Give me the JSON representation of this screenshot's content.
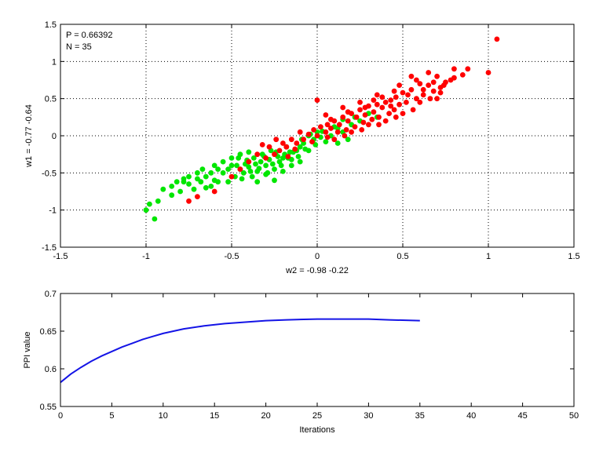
{
  "chart_data": [
    {
      "type": "scatter",
      "xlabel": "w2 = -0.98  -0.22",
      "ylabel": "w1 = -0.77  -0.64",
      "xlim": [
        -1.5,
        1.5
      ],
      "ylim": [
        -1.5,
        1.5
      ],
      "xticks": [
        "-1.5",
        "-1",
        "-0.5",
        "0",
        "0.5",
        "1",
        "1.5"
      ],
      "yticks": [
        "-1.5",
        "-1",
        "-0.5",
        "0",
        "0.5",
        "1",
        "1.5"
      ],
      "grid": true,
      "annotations": [
        "P = 0.66392",
        "N = 35"
      ],
      "series": [
        {
          "color": "#00e600",
          "points": [
            [
              -1.0,
              -1.0
            ],
            [
              -0.95,
              -1.12
            ],
            [
              -0.93,
              -0.88
            ],
            [
              -0.98,
              -0.92
            ],
            [
              -0.9,
              -0.72
            ],
            [
              -0.85,
              -0.68
            ],
            [
              -0.8,
              -0.75
            ],
            [
              -0.78,
              -0.62
            ],
            [
              -0.75,
              -0.65
            ],
            [
              -0.72,
              -0.72
            ],
            [
              -0.7,
              -0.58
            ],
            [
              -0.68,
              -0.62
            ],
            [
              -0.65,
              -0.55
            ],
            [
              -0.62,
              -0.5
            ],
            [
              -0.6,
              -0.6
            ],
            [
              -0.58,
              -0.45
            ],
            [
              -0.55,
              -0.5
            ],
            [
              -0.52,
              -0.62
            ],
            [
              -0.5,
              -0.4
            ],
            [
              -0.48,
              -0.55
            ],
            [
              -0.46,
              -0.3
            ],
            [
              -0.45,
              -0.45
            ],
            [
              -0.43,
              -0.5
            ],
            [
              -0.42,
              -0.38
            ],
            [
              -0.4,
              -0.42
            ],
            [
              -0.38,
              -0.55
            ],
            [
              -0.37,
              -0.3
            ],
            [
              -0.35,
              -0.48
            ],
            [
              -0.33,
              -0.35
            ],
            [
              -0.32,
              -0.25
            ],
            [
              -0.3,
              -0.4
            ],
            [
              -0.28,
              -0.32
            ],
            [
              -0.27,
              -0.2
            ],
            [
              -0.25,
              -0.45
            ],
            [
              -0.23,
              -0.28
            ],
            [
              -0.22,
              -0.35
            ],
            [
              -0.2,
              -0.3
            ],
            [
              -0.18,
              -0.15
            ],
            [
              -0.16,
              -0.22
            ],
            [
              -0.15,
              -0.32
            ],
            [
              -0.12,
              -0.2
            ],
            [
              -0.1,
              -0.35
            ],
            [
              -0.08,
              -0.1
            ],
            [
              -0.05,
              0.0
            ],
            [
              -0.02,
              -0.05
            ],
            [
              0.0,
              0.05
            ],
            [
              0.05,
              -0.08
            ],
            [
              0.08,
              0.0
            ],
            [
              0.12,
              0.1
            ],
            [
              0.15,
              0.05
            ],
            [
              0.2,
              0.15
            ],
            [
              0.22,
              0.25
            ],
            [
              0.25,
              0.2
            ],
            [
              0.18,
              -0.05
            ],
            [
              -0.55,
              -0.35
            ],
            [
              -0.6,
              -0.4
            ],
            [
              -0.65,
              -0.7
            ],
            [
              -0.7,
              -0.5
            ],
            [
              -0.75,
              -0.55
            ],
            [
              -0.45,
              -0.25
            ],
            [
              -0.5,
              -0.3
            ],
            [
              -0.4,
              -0.22
            ],
            [
              -0.35,
              -0.62
            ],
            [
              -0.3,
              -0.52
            ],
            [
              -0.25,
              -0.6
            ],
            [
              -0.2,
              -0.48
            ],
            [
              -0.15,
              -0.4
            ],
            [
              -0.1,
              -0.15
            ],
            [
              -0.05,
              -0.2
            ],
            [
              0.02,
              -0.02
            ],
            [
              0.1,
              0.12
            ],
            [
              0.15,
              0.22
            ],
            [
              0.3,
              0.3
            ],
            [
              0.35,
              0.25
            ],
            [
              0.12,
              -0.1
            ],
            [
              -0.85,
              -0.8
            ],
            [
              -0.82,
              -0.62
            ],
            [
              -0.78,
              -0.58
            ],
            [
              -0.67,
              -0.45
            ],
            [
              -0.62,
              -0.68
            ],
            [
              -0.58,
              -0.62
            ],
            [
              -0.52,
              -0.45
            ],
            [
              -0.47,
              -0.4
            ],
            [
              -0.44,
              -0.58
            ],
            [
              -0.41,
              -0.33
            ],
            [
              -0.39,
              -0.48
            ],
            [
              -0.36,
              -0.38
            ],
            [
              -0.34,
              -0.44
            ],
            [
              -0.31,
              -0.28
            ],
            [
              -0.29,
              -0.5
            ],
            [
              -0.26,
              -0.38
            ],
            [
              -0.24,
              -0.22
            ],
            [
              -0.21,
              -0.4
            ],
            [
              -0.19,
              -0.25
            ],
            [
              -0.17,
              -0.3
            ],
            [
              -0.14,
              -0.22
            ],
            [
              -0.11,
              -0.28
            ],
            [
              -0.09,
              -0.05
            ],
            [
              -0.07,
              -0.18
            ],
            [
              -0.04,
              0.02
            ],
            [
              -0.01,
              -0.12
            ],
            [
              0.03,
              0.06
            ]
          ]
        },
        {
          "color": "#ff0000",
          "points": [
            [
              1.05,
              1.3
            ],
            [
              1.0,
              0.85
            ],
            [
              0.85,
              0.82
            ],
            [
              0.8,
              0.9
            ],
            [
              0.78,
              0.75
            ],
            [
              0.75,
              0.72
            ],
            [
              0.72,
              0.65
            ],
            [
              0.7,
              0.8
            ],
            [
              0.68,
              0.6
            ],
            [
              0.65,
              0.68
            ],
            [
              0.62,
              0.55
            ],
            [
              0.6,
              0.7
            ],
            [
              0.58,
              0.5
            ],
            [
              0.55,
              0.62
            ],
            [
              0.52,
              0.45
            ],
            [
              0.5,
              0.58
            ],
            [
              0.48,
              0.42
            ],
            [
              0.46,
              0.52
            ],
            [
              0.45,
              0.35
            ],
            [
              0.43,
              0.48
            ],
            [
              0.42,
              0.3
            ],
            [
              0.4,
              0.45
            ],
            [
              0.38,
              0.38
            ],
            [
              0.36,
              0.25
            ],
            [
              0.35,
              0.42
            ],
            [
              0.33,
              0.32
            ],
            [
              0.32,
              0.22
            ],
            [
              0.3,
              0.4
            ],
            [
              0.28,
              0.28
            ],
            [
              0.27,
              0.18
            ],
            [
              0.25,
              0.35
            ],
            [
              0.23,
              0.25
            ],
            [
              0.22,
              0.12
            ],
            [
              0.2,
              0.3
            ],
            [
              0.18,
              0.2
            ],
            [
              0.17,
              0.08
            ],
            [
              0.15,
              0.25
            ],
            [
              0.13,
              0.15
            ],
            [
              0.12,
              0.05
            ],
            [
              0.1,
              0.2
            ],
            [
              0.08,
              0.1
            ],
            [
              0.06,
              0.15
            ],
            [
              0.05,
              0.05
            ],
            [
              0.02,
              0.12
            ],
            [
              0.0,
              0.0
            ],
            [
              -0.02,
              0.08
            ],
            [
              -0.05,
              0.02
            ],
            [
              -0.08,
              -0.05
            ],
            [
              -0.1,
              0.05
            ],
            [
              -0.12,
              -0.1
            ],
            [
              -0.15,
              -0.05
            ],
            [
              -0.18,
              -0.15
            ],
            [
              -0.2,
              -0.1
            ],
            [
              -0.22,
              -0.2
            ],
            [
              -0.25,
              -0.25
            ],
            [
              -0.28,
              -0.15
            ],
            [
              -0.3,
              -0.3
            ],
            [
              -0.35,
              -0.25
            ],
            [
              -0.4,
              -0.35
            ],
            [
              -0.45,
              -0.45
            ],
            [
              -0.5,
              -0.55
            ],
            [
              -0.6,
              -0.75
            ],
            [
              -0.7,
              -0.82
            ],
            [
              -0.75,
              -0.88
            ],
            [
              0.35,
              0.55
            ],
            [
              0.45,
              0.6
            ],
            [
              0.55,
              0.8
            ],
            [
              0.65,
              0.85
            ],
            [
              0.7,
              0.5
            ],
            [
              0.6,
              0.45
            ],
            [
              0.5,
              0.3
            ],
            [
              0.4,
              0.2
            ],
            [
              0.3,
              0.15
            ],
            [
              0.2,
              0.05
            ],
            [
              0.1,
              -0.05
            ],
            [
              0.25,
              0.45
            ],
            [
              0.15,
              0.38
            ],
            [
              0.05,
              0.28
            ],
            [
              0.0,
              0.48
            ],
            [
              0.38,
              0.52
            ],
            [
              0.48,
              0.68
            ],
            [
              0.58,
              0.75
            ],
            [
              0.68,
              0.72
            ],
            [
              0.53,
              0.55
            ],
            [
              0.43,
              0.4
            ],
            [
              0.33,
              0.48
            ],
            [
              0.28,
              0.38
            ],
            [
              0.18,
              0.32
            ],
            [
              0.08,
              0.22
            ],
            [
              0.62,
              0.62
            ],
            [
              0.72,
              0.58
            ],
            [
              0.8,
              0.78
            ],
            [
              0.88,
              0.9
            ],
            [
              0.56,
              0.35
            ],
            [
              0.46,
              0.25
            ],
            [
              0.36,
              0.15
            ],
            [
              0.26,
              0.08
            ],
            [
              0.16,
              0.0
            ],
            [
              0.06,
              -0.02
            ],
            [
              -0.03,
              -0.08
            ],
            [
              -0.13,
              -0.18
            ],
            [
              -0.17,
              -0.28
            ],
            [
              -0.24,
              -0.05
            ],
            [
              -0.32,
              -0.12
            ],
            [
              0.74,
              0.68
            ],
            [
              0.66,
              0.5
            ]
          ]
        }
      ]
    },
    {
      "type": "line",
      "xlabel": "Iterations",
      "ylabel": "PPI value",
      "xlim": [
        0,
        50
      ],
      "ylim": [
        0.55,
        0.7
      ],
      "xticks": [
        "0",
        "5",
        "10",
        "15",
        "20",
        "25",
        "30",
        "35",
        "40",
        "45",
        "50"
      ],
      "yticks": [
        "0.55",
        "0.6",
        "0.65",
        "0.7"
      ],
      "grid": false,
      "series": [
        {
          "color": "#1414e6",
          "x": [
            0,
            1,
            2,
            3,
            4,
            5,
            6,
            7,
            8,
            9,
            10,
            12,
            14,
            16,
            18,
            20,
            22,
            25,
            28,
            30,
            32,
            35
          ],
          "y": [
            0.582,
            0.593,
            0.602,
            0.61,
            0.617,
            0.623,
            0.629,
            0.634,
            0.639,
            0.643,
            0.647,
            0.653,
            0.657,
            0.66,
            0.662,
            0.664,
            0.665,
            0.666,
            0.666,
            0.666,
            0.665,
            0.664
          ]
        }
      ]
    }
  ]
}
